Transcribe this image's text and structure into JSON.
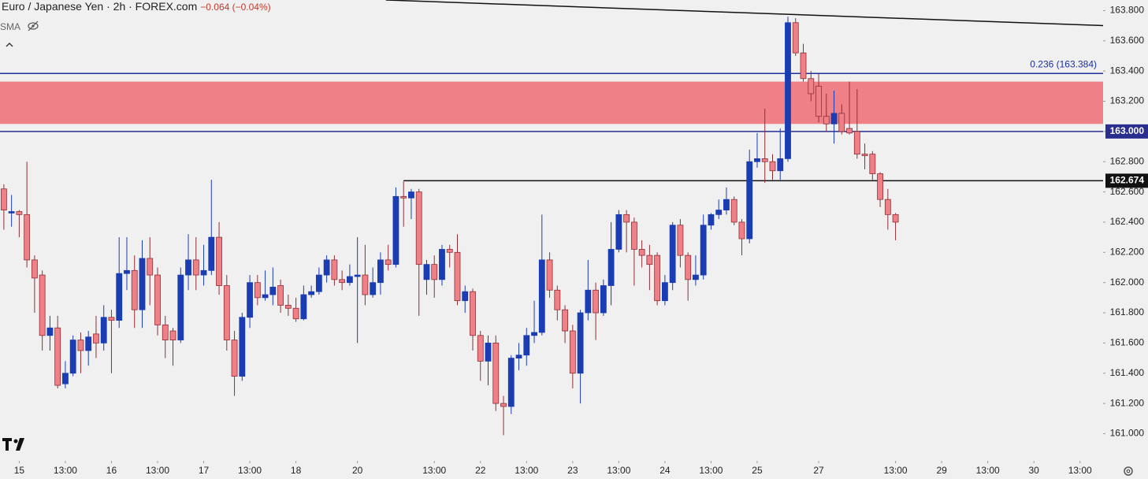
{
  "header": {
    "title": "Euro / Japanese Yen · 2h · FOREX.com",
    "change": "−0.064 (−0.04%)",
    "indicator": "SMA"
  },
  "chart_data": {
    "type": "candlestick",
    "x": [
      0,
      1,
      2,
      3,
      4,
      5,
      6,
      7,
      8,
      9,
      10,
      11,
      12,
      13,
      14,
      15,
      16,
      17,
      18,
      19,
      20,
      21,
      22,
      23,
      24,
      25,
      26,
      27,
      28,
      29,
      30,
      31,
      32,
      33,
      34,
      35,
      36,
      37,
      38,
      39,
      40,
      41,
      42,
      43,
      44,
      45,
      46,
      47,
      48,
      49,
      50,
      51,
      52,
      53,
      54,
      55,
      56,
      57,
      58,
      59,
      60,
      61,
      62,
      63,
      64,
      65,
      66,
      67,
      68,
      69,
      70,
      71,
      72,
      73,
      74,
      75,
      76,
      77,
      78,
      79,
      80,
      81,
      82,
      83,
      84,
      85,
      86,
      87,
      88,
      89,
      90,
      91,
      92,
      93,
      94,
      95,
      96,
      97,
      98,
      99,
      100,
      101,
      102,
      103,
      104,
      105,
      106,
      107,
      108,
      109,
      110,
      111,
      112,
      113,
      114,
      115,
      116
    ],
    "open": [
      162.62,
      162.46,
      162.47,
      162.45,
      162.15,
      162.05,
      161.65,
      161.7,
      161.33,
      161.4,
      161.62,
      161.55,
      161.66,
      161.6,
      161.77,
      161.75,
      162.06,
      162.08,
      161.82,
      162.16,
      162.05,
      161.72,
      161.68,
      161.62,
      162.05,
      162.15,
      162.05,
      162.08,
      162.3,
      161.98,
      161.62,
      161.38,
      161.77,
      162.0,
      161.9,
      161.92,
      161.98,
      161.85,
      161.83,
      161.76,
      161.92,
      161.94,
      162.05,
      162.15,
      162.02,
      162.0,
      162.04,
      162.05,
      161.92,
      162.0,
      162.15,
      162.12,
      162.57,
      162.56,
      162.6,
      162.02,
      162.12,
      162.02,
      162.22,
      162.2,
      161.88,
      161.94,
      161.65,
      161.48,
      161.6,
      161.2,
      161.18,
      161.5,
      161.52,
      161.65,
      161.67,
      162.15,
      161.95,
      161.82,
      161.68,
      161.4,
      161.8,
      161.95,
      161.8,
      161.98,
      162.22,
      162.45,
      162.4,
      162.22,
      162.18,
      162.18,
      161.88,
      162.0,
      162.38,
      162.18,
      162.02,
      162.05,
      162.38,
      162.45,
      162.48,
      162.55,
      162.4,
      162.29,
      162.8,
      162.82,
      162.8,
      162.74,
      162.82,
      163.72,
      163.52,
      163.35,
      163.3,
      163.1,
      163.05,
      163.12,
      163.02,
      163.0,
      162.85,
      162.85,
      162.72,
      162.55,
      162.45
    ],
    "high": [
      162.65,
      162.58,
      162.48,
      162.8,
      162.18,
      162.08,
      161.78,
      161.78,
      161.48,
      161.65,
      161.67,
      161.68,
      161.78,
      161.85,
      161.82,
      162.3,
      162.3,
      162.18,
      162.28,
      162.3,
      162.1,
      161.78,
      161.7,
      162.1,
      162.32,
      162.3,
      162.25,
      162.68,
      162.4,
      162.05,
      161.68,
      161.8,
      162.05,
      162.05,
      162.08,
      162.1,
      162.02,
      161.92,
      161.9,
      161.98,
      161.98,
      162.1,
      162.18,
      162.18,
      162.08,
      162.12,
      162.3,
      162.25,
      162.1,
      162.2,
      162.25,
      162.63,
      162.67,
      162.62,
      162.62,
      162.15,
      162.18,
      162.25,
      162.25,
      162.32,
      161.98,
      161.96,
      161.68,
      161.65,
      161.65,
      161.25,
      161.52,
      161.6,
      161.7,
      161.88,
      162.45,
      162.2,
      161.98,
      161.85,
      161.72,
      161.82,
      162.15,
      162.0,
      162.02,
      162.4,
      162.48,
      162.48,
      162.43,
      162.28,
      162.25,
      162.2,
      162.05,
      162.4,
      162.42,
      162.2,
      162.18,
      162.45,
      162.46,
      162.55,
      162.63,
      162.57,
      162.42,
      162.88,
      162.99,
      163.15,
      162.85,
      163.02,
      163.76,
      163.75,
      163.58,
      163.4,
      163.38,
      163.25,
      163.27,
      163.18,
      163.33,
      163.28,
      162.92,
      162.87,
      162.73,
      162.62,
      162.46
    ],
    "low": [
      162.35,
      162.37,
      162.3,
      162.1,
      161.8,
      161.55,
      161.55,
      161.3,
      161.3,
      161.38,
      161.4,
      161.45,
      161.5,
      161.55,
      161.4,
      161.7,
      161.95,
      161.7,
      161.7,
      161.85,
      161.65,
      161.5,
      161.45,
      161.6,
      161.95,
      161.95,
      161.98,
      162.05,
      161.92,
      161.55,
      161.25,
      161.35,
      161.7,
      161.85,
      161.88,
      161.85,
      161.8,
      161.78,
      161.74,
      161.75,
      161.9,
      161.92,
      162.0,
      161.98,
      161.95,
      161.98,
      161.6,
      161.85,
      161.9,
      161.92,
      162.08,
      162.1,
      162.37,
      162.42,
      161.78,
      161.92,
      161.9,
      161.98,
      162.1,
      161.85,
      161.8,
      161.55,
      161.35,
      161.32,
      161.15,
      160.99,
      161.13,
      161.42,
      161.45,
      161.6,
      161.65,
      161.9,
      161.75,
      161.6,
      161.3,
      161.2,
      161.75,
      161.62,
      161.78,
      161.85,
      162.2,
      162.2,
      161.98,
      162.1,
      161.95,
      161.85,
      161.85,
      161.95,
      162.1,
      161.88,
      161.98,
      162.02,
      162.35,
      162.42,
      162.45,
      162.38,
      162.18,
      162.26,
      162.76,
      162.66,
      162.68,
      162.68,
      162.8,
      163.5,
      163.33,
      163.2,
      163.06,
      163.0,
      162.92,
      162.98,
      162.98,
      162.82,
      162.75,
      162.68,
      162.5,
      162.35,
      162.28
    ],
    "close": [
      162.48,
      162.47,
      162.45,
      162.15,
      162.03,
      161.65,
      161.7,
      161.32,
      161.4,
      161.62,
      161.55,
      161.64,
      161.6,
      161.77,
      161.75,
      162.06,
      162.08,
      161.82,
      162.16,
      162.05,
      161.72,
      161.62,
      161.62,
      162.05,
      162.15,
      162.05,
      162.08,
      162.3,
      161.98,
      161.62,
      161.38,
      161.77,
      162.0,
      161.9,
      161.92,
      161.97,
      161.85,
      161.83,
      161.76,
      161.92,
      161.94,
      162.05,
      162.15,
      162.02,
      162.0,
      162.04,
      162.05,
      161.92,
      162.0,
      162.15,
      162.12,
      162.57,
      162.56,
      162.6,
      162.12,
      162.12,
      162.02,
      162.22,
      162.2,
      161.88,
      161.94,
      161.65,
      161.48,
      161.6,
      161.2,
      161.18,
      161.5,
      161.52,
      161.65,
      161.67,
      162.15,
      161.95,
      161.82,
      161.68,
      161.4,
      161.8,
      161.95,
      161.8,
      161.98,
      162.22,
      162.45,
      162.4,
      162.22,
      162.18,
      162.12,
      161.88,
      162.0,
      162.38,
      162.18,
      162.02,
      162.05,
      162.38,
      162.45,
      162.48,
      162.55,
      162.4,
      162.29,
      162.8,
      162.82,
      162.8,
      162.74,
      162.82,
      163.72,
      163.52,
      163.35,
      163.25,
      163.1,
      163.05,
      163.12,
      163.0,
      162.99,
      162.85,
      162.84,
      162.72,
      162.55,
      162.45,
      162.4
    ],
    "up_color": "#1b3db3",
    "down_color": "#f08088",
    "down_outline": "#8e2f35",
    "xlim": [
      -0.5,
      143
    ],
    "xticks": [
      {
        "value": 2,
        "label": "15"
      },
      {
        "value": 8,
        "label": "13:00"
      },
      {
        "value": 14,
        "label": "16"
      },
      {
        "value": 20,
        "label": "13:00"
      },
      {
        "value": 26,
        "label": "17"
      },
      {
        "value": 32,
        "label": "13:00"
      },
      {
        "value": 38,
        "label": "18"
      },
      {
        "value": 46,
        "label": "20"
      },
      {
        "value": 56,
        "label": "13:00"
      },
      {
        "value": 62,
        "label": "22"
      },
      {
        "value": 68,
        "label": "13:00"
      },
      {
        "value": 74,
        "label": "23"
      },
      {
        "value": 80,
        "label": "13:00"
      },
      {
        "value": 86,
        "label": "24"
      },
      {
        "value": 92,
        "label": "13:00"
      },
      {
        "value": 98,
        "label": "25"
      },
      {
        "value": 106,
        "label": "27"
      },
      {
        "value": 116,
        "label": "13:00"
      },
      {
        "value": 122,
        "label": "29"
      },
      {
        "value": 128,
        "label": "13:00"
      },
      {
        "value": 134,
        "label": "30"
      },
      {
        "value": 140,
        "label": "13:00"
      }
    ],
    "ylim": [
      160.82,
      163.87
    ],
    "yticks": [
      {
        "value": 161,
        "label": "161.000"
      },
      {
        "value": 161.2,
        "label": "161.200"
      },
      {
        "value": 161.4,
        "label": "161.400"
      },
      {
        "value": 161.6,
        "label": "161.600"
      },
      {
        "value": 161.8,
        "label": "161.800"
      },
      {
        "value": 162,
        "label": "162.000"
      },
      {
        "value": 162.2,
        "label": "162.200"
      },
      {
        "value": 162.4,
        "label": "162.400"
      },
      {
        "value": 162.6,
        "label": "162.600"
      },
      {
        "value": 162.8,
        "label": "162.800"
      },
      {
        "value": 163,
        "label": "163.000"
      },
      {
        "value": 163.2,
        "label": "163.200"
      },
      {
        "value": 163.4,
        "label": "163.400"
      },
      {
        "value": 163.6,
        "label": "163.600"
      },
      {
        "value": 163.8,
        "label": "163.800"
      }
    ],
    "zone": {
      "low": 163.05,
      "high": 163.33,
      "color": "#f08088"
    },
    "fib_level": {
      "value": 163.384,
      "label": "0.236 (163.384)",
      "color": "#1c2f9e"
    },
    "levels": [
      {
        "value": 163,
        "label": "163.000",
        "color": "#2a2f8f",
        "start": -0.5
      },
      {
        "value": 162.674,
        "label": "162.674",
        "color": "#111111",
        "start": 52
      }
    ],
    "trendline": {
      "x": [
        49.7,
        148.9
      ],
      "y": [
        163.87,
        163.69
      ],
      "color": "#111111"
    }
  }
}
